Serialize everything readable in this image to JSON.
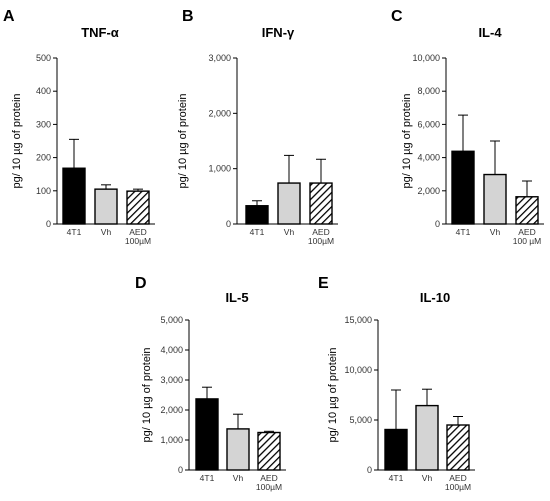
{
  "chart_data": [
    {
      "type": "bar",
      "panel": "A",
      "title": "TNF-α",
      "ylabel": "pg/ 10 µg of protein",
      "ylim": [
        0,
        500
      ],
      "yticks": [
        0,
        100,
        200,
        300,
        400,
        500
      ],
      "ytick_labels": [
        "0",
        "100",
        "200",
        "300",
        "400",
        "500"
      ],
      "categories": [
        [
          "4T1"
        ],
        [
          "Vh"
        ],
        [
          "AED",
          "100µM"
        ]
      ],
      "values": [
        168,
        105,
        99
      ],
      "errors": [
        87,
        13,
        6
      ],
      "fills": [
        "black",
        "lightgray",
        "hatch"
      ]
    },
    {
      "type": "bar",
      "panel": "B",
      "title": "IFN-γ",
      "ylabel": "pg/ 10 µg of protein",
      "ylim": [
        0,
        3000
      ],
      "yticks": [
        0,
        1000,
        2000,
        3000
      ],
      "ytick_labels": [
        "0",
        "1,000",
        "2,000",
        "3,000"
      ],
      "categories": [
        [
          "4T1"
        ],
        [
          "Vh"
        ],
        [
          "AED",
          "100µM"
        ]
      ],
      "values": [
        330,
        740,
        740
      ],
      "errors": [
        90,
        500,
        430
      ],
      "fills": [
        "black",
        "lightgray",
        "hatch"
      ]
    },
    {
      "type": "bar",
      "panel": "C",
      "title": "IL-4",
      "ylabel": "pg/ 10 µg of protein",
      "ylim": [
        0,
        10000
      ],
      "yticks": [
        0,
        2000,
        4000,
        6000,
        8000,
        10000
      ],
      "ytick_labels": [
        "0",
        "2,000",
        "4,000",
        "6,000",
        "8,000",
        "10,000"
      ],
      "categories": [
        [
          "4T1"
        ],
        [
          "Vh"
        ],
        [
          "AED",
          "100 µM"
        ]
      ],
      "values": [
        4380,
        2980,
        1640
      ],
      "errors": [
        2180,
        2020,
        950
      ],
      "fills": [
        "black",
        "lightgray",
        "hatch"
      ]
    },
    {
      "type": "bar",
      "panel": "D",
      "title": "IL-5",
      "ylabel": "pg/ 10 µg of protein",
      "ylim": [
        0,
        5000
      ],
      "yticks": [
        0,
        1000,
        2000,
        3000,
        4000,
        5000
      ],
      "ytick_labels": [
        "0",
        "1,000",
        "2,000",
        "3,000",
        "4,000",
        "5,000"
      ],
      "categories": [
        [
          "4T1"
        ],
        [
          "Vh"
        ],
        [
          "AED",
          "100µM"
        ]
      ],
      "values": [
        2370,
        1370,
        1250
      ],
      "errors": [
        390,
        490,
        40
      ],
      "fills": [
        "black",
        "lightgray",
        "hatch"
      ]
    },
    {
      "type": "bar",
      "panel": "E",
      "title": "IL-10",
      "ylabel": "pg/ 10 µg of protein",
      "ylim": [
        0,
        15000
      ],
      "yticks": [
        0,
        5000,
        10000,
        15000
      ],
      "ytick_labels": [
        "0",
        "5,000",
        "10,000",
        "15,000"
      ],
      "categories": [
        [
          "4T1"
        ],
        [
          "Vh"
        ],
        [
          "AED",
          "100µM"
        ]
      ],
      "values": [
        4050,
        6440,
        4500
      ],
      "errors": [
        3950,
        1640,
        850
      ],
      "fills": [
        "black",
        "lightgray",
        "hatch"
      ]
    }
  ]
}
